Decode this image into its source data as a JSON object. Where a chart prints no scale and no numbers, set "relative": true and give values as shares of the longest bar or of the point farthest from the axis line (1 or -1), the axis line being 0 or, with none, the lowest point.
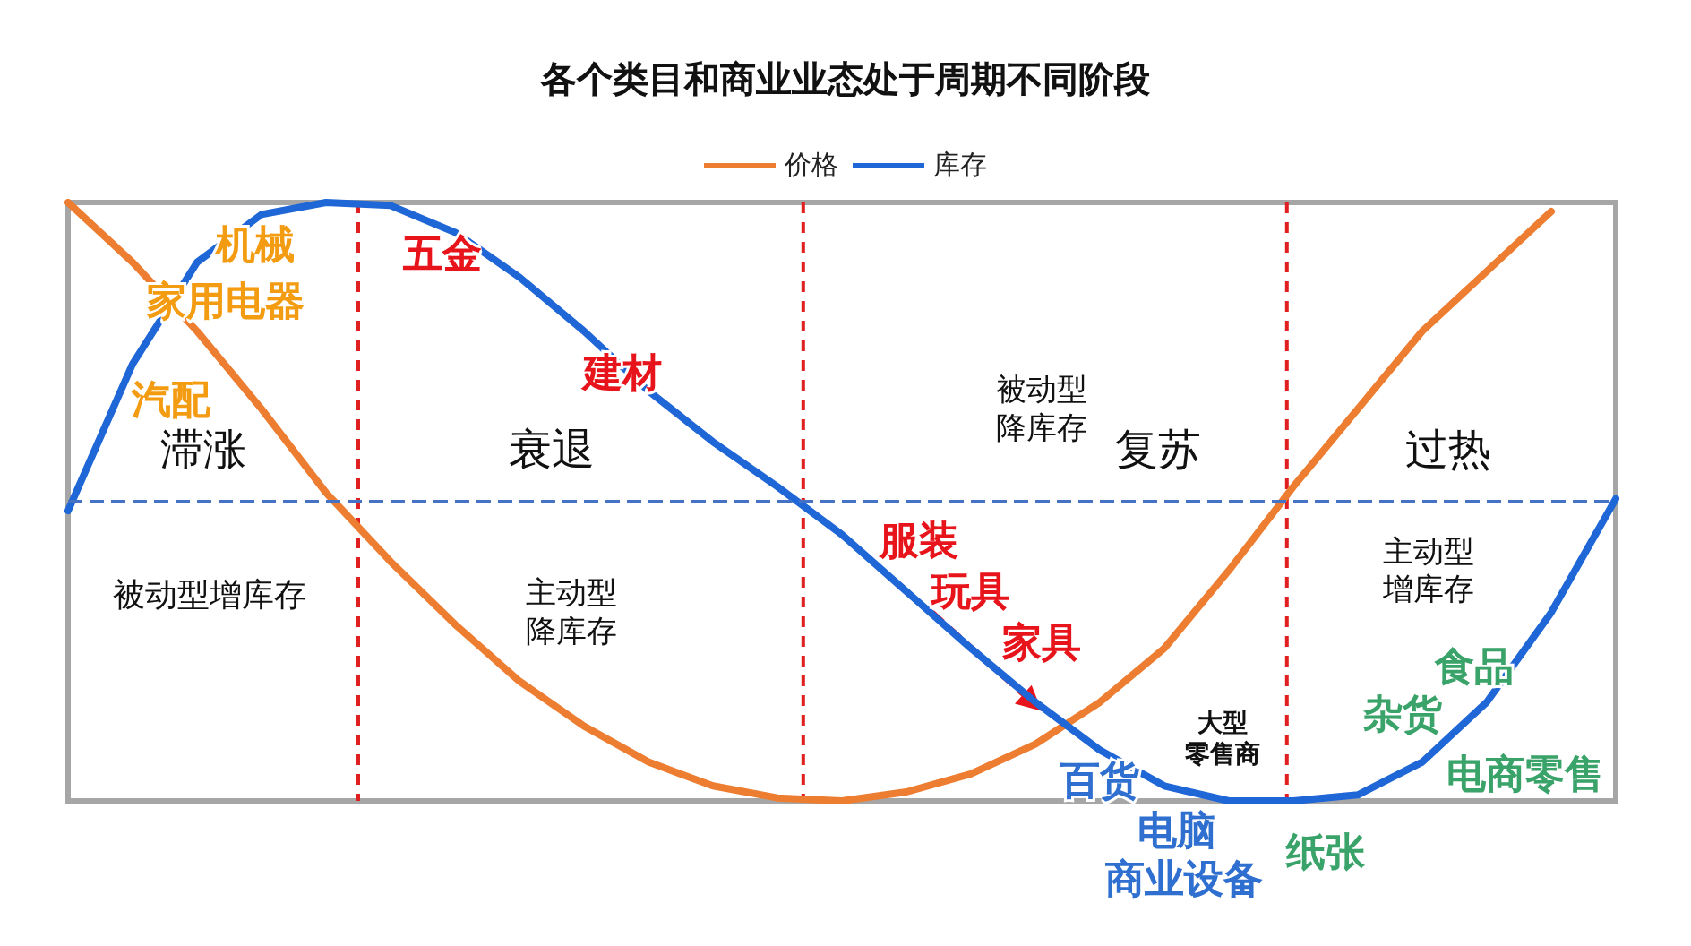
{
  "chart_data": {
    "type": "line",
    "title": "各个类目和商业业态处于周期不同阶段",
    "relative": true,
    "legend": "top",
    "marker": "none",
    "grid": false,
    "categories": [
      null,
      null,
      null,
      null,
      null,
      null,
      null,
      null,
      null,
      null,
      null,
      null,
      null,
      null,
      null,
      null,
      null,
      null,
      null,
      null,
      null,
      null,
      null,
      null,
      null
    ],
    "series": [
      {
        "name": "价格",
        "color": "#ed7d31",
        "values": [
          1.0,
          0.8,
          0.57,
          0.31,
          0.03,
          -0.2,
          -0.41,
          -0.6,
          -0.75,
          -0.87,
          -0.95,
          -0.99,
          -1.0,
          -0.97,
          -0.91,
          -0.81,
          -0.67,
          -0.49,
          -0.23,
          0.05,
          0.31,
          0.57,
          0.77,
          0.97,
          null
        ]
      },
      {
        "name": "库存",
        "color": "#1f66d6",
        "values": [
          -0.03,
          0.46,
          0.8,
          0.96,
          1.0,
          0.99,
          0.9,
          0.75,
          0.57,
          0.37,
          0.2,
          0.05,
          -0.11,
          -0.3,
          -0.49,
          -0.67,
          -0.83,
          -0.95,
          -1.0,
          -1.0,
          -0.98,
          -0.87,
          -0.67,
          -0.37,
          0.01
        ]
      }
    ],
    "ref_lines": [
      {
        "axis": "y",
        "value": 0,
        "color": "#4472c4",
        "line_style": "dashed"
      }
    ],
    "annotations": [
      "机械",
      "家用电器",
      "汽配",
      "五金",
      "建材",
      "滞涨",
      "衰退",
      "被动型降库存",
      "复苏",
      "过热",
      "被动型增库存",
      "主动型降库存",
      "主动型增库存",
      "服装",
      "玩具",
      "家具",
      "大型零售商",
      "百货",
      "电脑",
      "商业设备",
      "纸张",
      "杂货",
      "食品",
      "电商零售"
    ]
  }
}
